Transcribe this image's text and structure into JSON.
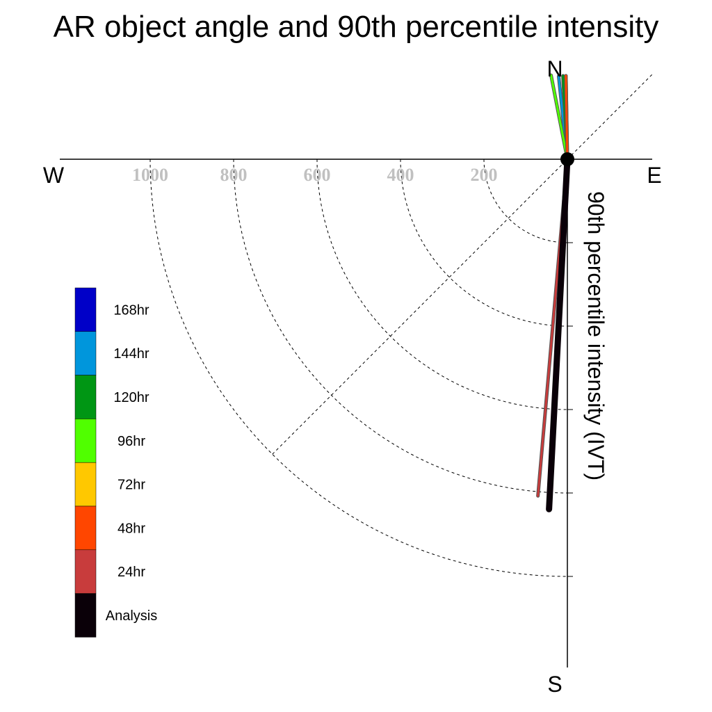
{
  "chart_data": {
    "type": "polar-vector",
    "title": "AR object angle and 90th percentile intensity",
    "ylabel": "90th percentile intensity (IVT)",
    "compass": {
      "north": "N",
      "south": "S",
      "east": "E",
      "west": "W"
    },
    "radial_ticks": [
      200,
      400,
      600,
      800,
      1000
    ],
    "radial_tick_labels": [
      "200",
      "400",
      "600",
      "800",
      "1000"
    ],
    "rmax": 1000,
    "legend": [
      "168hr",
      "144hr",
      "120hr",
      "96hr",
      "72hr",
      "48hr",
      "24hr",
      "Analysis"
    ],
    "colors": {
      "168hr": "#0000c8",
      "144hr": "#0096dc",
      "120hr": "#009614",
      "96hr": "#50ff00",
      "72hr": "#ffc800",
      "48hr": "#ff4600",
      "24hr": "#c83c3c",
      "Analysis": "#0a0008"
    },
    "vectors": [
      {
        "lead": "168hr",
        "angle_deg": 357,
        "magnitude": 200
      },
      {
        "lead": "144hr",
        "angle_deg": 354,
        "magnitude": 200
      },
      {
        "lead": "120hr",
        "angle_deg": 357,
        "magnitude": 200
      },
      {
        "lead": "96hr",
        "angle_deg": 349,
        "magnitude": 205
      },
      {
        "lead": "72hr",
        "angle_deg": 359,
        "magnitude": 200
      },
      {
        "lead": "48hr",
        "angle_deg": 359,
        "magnitude": 200
      },
      {
        "lead": "24hr",
        "angle_deg": 185,
        "magnitude": 810
      },
      {
        "lead": "Analysis",
        "angle_deg": 183,
        "magnitude": 840
      }
    ]
  }
}
